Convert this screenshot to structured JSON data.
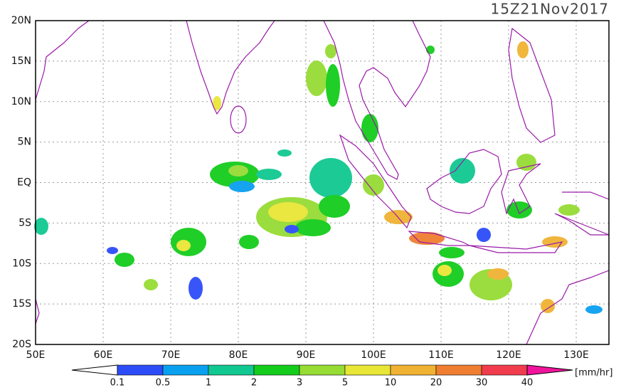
{
  "header": {
    "timestamp": "15Z21Nov2017"
  },
  "map": {
    "lat_labels": [
      "20N",
      "15N",
      "10N",
      "5N",
      "EQ",
      "5S",
      "10S",
      "15S",
      "20S"
    ],
    "lon_labels": [
      "50E",
      "60E",
      "70E",
      "80E",
      "90E",
      "100E",
      "110E",
      "120E",
      "130E"
    ]
  },
  "colorbar": {
    "labels": [
      "0.1",
      "0.5",
      "1",
      "2",
      "3",
      "5",
      "10",
      "20",
      "30",
      "40"
    ],
    "colors": [
      "#ffffff",
      "#2c4cf8",
      "#0aa0f0",
      "#10c890",
      "#14cc1c",
      "#96dc34",
      "#e8e636",
      "#f0b232",
      "#f07e30",
      "#f03c4c",
      "#f0149c"
    ],
    "unit": "[mm/hr]"
  }
}
